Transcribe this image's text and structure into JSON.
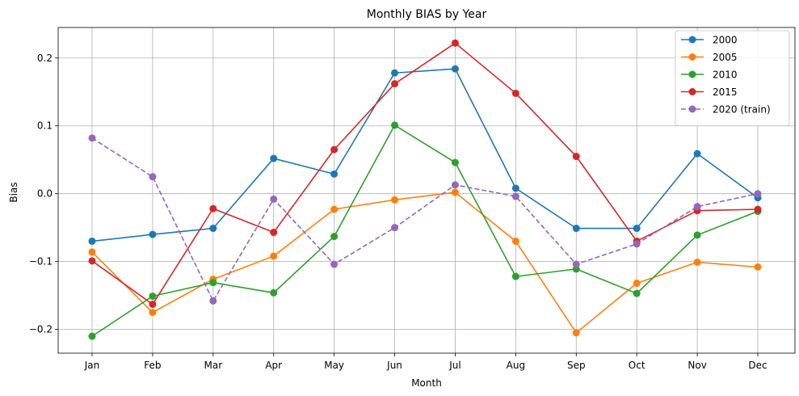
{
  "chart_data": {
    "type": "line",
    "title": "Monthly BIAS by Year",
    "xlabel": "Month",
    "ylabel": "Bias",
    "categories": [
      "Jan",
      "Feb",
      "Mar",
      "Apr",
      "May",
      "Jun",
      "Jul",
      "Aug",
      "Sep",
      "Oct",
      "Nov",
      "Dec"
    ],
    "ylim": [
      -0.235,
      0.245
    ],
    "yticks": [
      -0.2,
      -0.1,
      0.0,
      0.1,
      0.2
    ],
    "ytick_labels": [
      "−0.2",
      "−0.1",
      "0.0",
      "0.1",
      "0.2"
    ],
    "grid": true,
    "legend_position": "top-right",
    "series": [
      {
        "name": "2000",
        "color": "#1f77b4",
        "dashed": false,
        "values": [
          -0.07,
          -0.06,
          -0.051,
          0.052,
          0.029,
          0.178,
          0.184,
          0.008,
          -0.051,
          -0.051,
          0.059,
          -0.006
        ]
      },
      {
        "name": "2005",
        "color": "#ff7f0e",
        "dashed": false,
        "values": [
          -0.086,
          -0.175,
          -0.126,
          -0.092,
          -0.023,
          -0.009,
          0.002,
          -0.07,
          -0.205,
          -0.132,
          -0.101,
          -0.108
        ]
      },
      {
        "name": "2010",
        "color": "#2ca02c",
        "dashed": false,
        "values": [
          -0.21,
          -0.151,
          -0.131,
          -0.146,
          -0.063,
          0.101,
          0.046,
          -0.122,
          -0.111,
          -0.147,
          -0.061,
          -0.026
        ]
      },
      {
        "name": "2015",
        "color": "#d62728",
        "dashed": false,
        "values": [
          -0.099,
          -0.163,
          -0.022,
          -0.057,
          0.065,
          0.162,
          0.222,
          0.148,
          0.055,
          -0.07,
          -0.025,
          -0.023
        ]
      },
      {
        "name": "2020 (train)",
        "color": "#9467bd",
        "dashed": true,
        "values": [
          0.082,
          0.025,
          -0.158,
          -0.008,
          -0.104,
          -0.05,
          0.013,
          -0.004,
          -0.104,
          -0.074,
          -0.019,
          0.0
        ]
      }
    ]
  }
}
